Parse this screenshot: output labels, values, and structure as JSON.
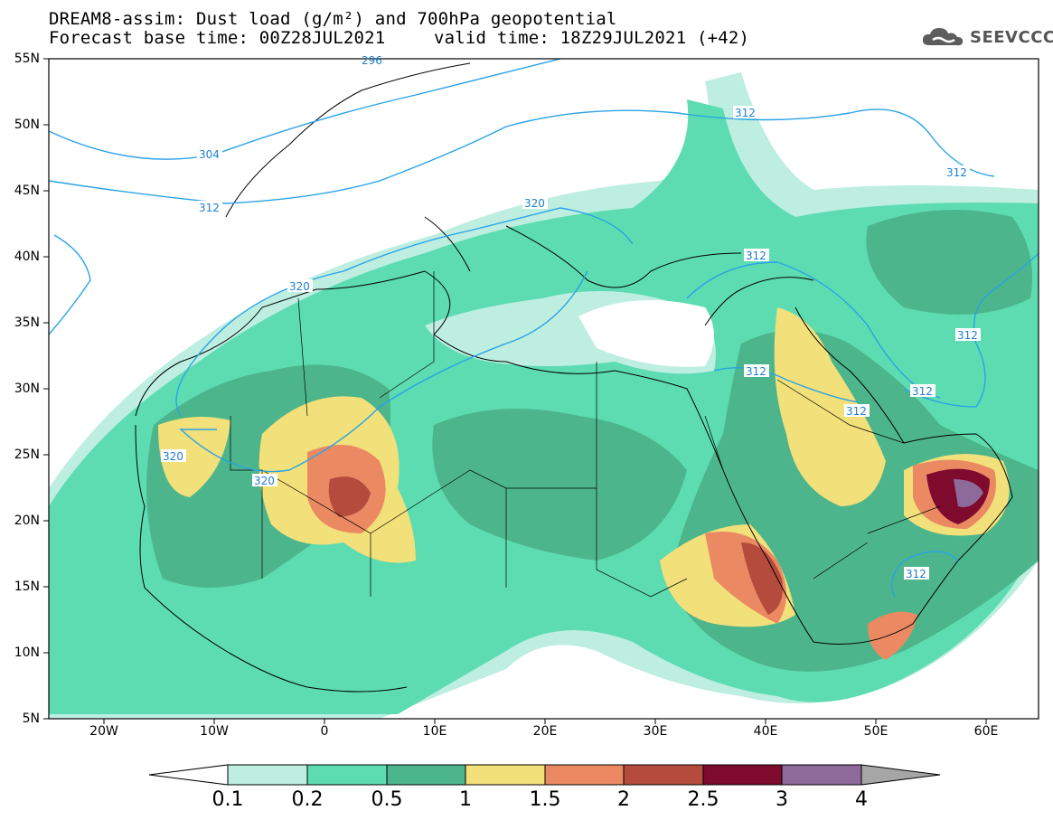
{
  "title": {
    "line1": "DREAM8-assim: Dust load (g/m²) and 700hPa geopotential",
    "line2a": "Forecast base time: 00Z28JUL2021",
    "line2b": "valid time: 18Z29JUL2021 (+42)"
  },
  "logo": {
    "text": "SEEVCCC",
    "icon": "cloud-icon"
  },
  "axes": {
    "lat_labels": [
      "55N",
      "50N",
      "45N",
      "40N",
      "35N",
      "30N",
      "25N",
      "20N",
      "15N",
      "10N",
      "5N"
    ],
    "lon_labels": [
      "20W",
      "10W",
      "0",
      "10E",
      "20E",
      "30E",
      "40E",
      "50E",
      "60E"
    ],
    "lon_range": [
      -25,
      65
    ],
    "lat_range": [
      5,
      55
    ]
  },
  "contour_labels": [
    "304",
    "312",
    "312",
    "312",
    "312",
    "312",
    "312",
    "312",
    "312",
    "320",
    "320",
    "320",
    "320",
    "296"
  ],
  "colorbar": {
    "labels": [
      "0.1",
      "0.2",
      "0.5",
      "1",
      "1.5",
      "2",
      "2.5",
      "3",
      "4"
    ],
    "colors": [
      "#bdeee0",
      "#5ddcb1",
      "#4db58c",
      "#f2e07a",
      "#eb8a62",
      "#b44b3d",
      "#7e0a2e",
      "#8e6a9b",
      "#a6a6a6"
    ]
  },
  "colors": {
    "contour": "#2aa3e6",
    "border": "#000000",
    "background": "#ffffff"
  }
}
